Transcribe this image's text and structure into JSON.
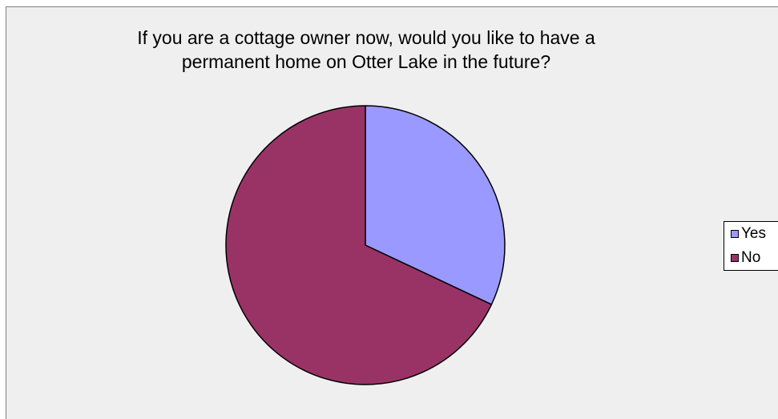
{
  "chart_data": {
    "type": "pie",
    "title_lines": [
      "If you are a cottage owner now, would you like to have a",
      "permanent home on Otter Lake in the future?"
    ],
    "slices": [
      {
        "label": "Yes",
        "value": 32,
        "color": "#9999ff"
      },
      {
        "label": "No",
        "value": 68,
        "color": "#993366"
      }
    ],
    "legend_position": "right"
  }
}
